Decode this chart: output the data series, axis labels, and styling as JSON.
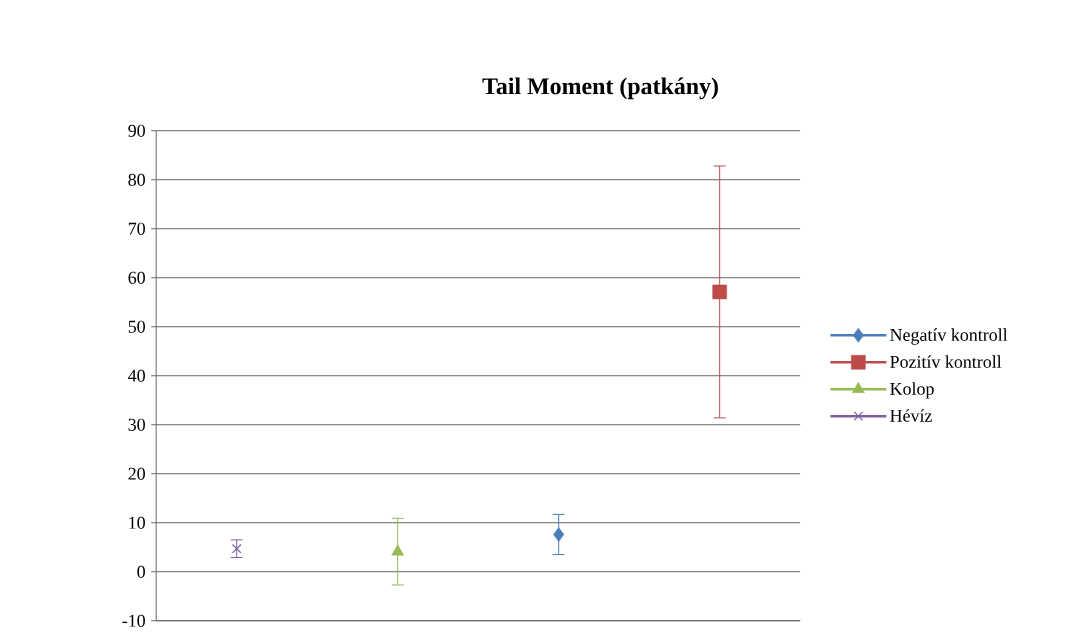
{
  "chart_data": {
    "type": "line",
    "title": "Tail Moment (patkány)",
    "categories": [
      null,
      null,
      null,
      null
    ],
    "ylim": [
      -10,
      90
    ],
    "yticks": [
      -10,
      0,
      10,
      20,
      30,
      40,
      50,
      60,
      70,
      80,
      90
    ],
    "grid": "y",
    "tick_labels": "y",
    "legend": "right",
    "series": [
      {
        "name": "Negatív kontroll",
        "color": "#4a7ebb",
        "marker": "diamond",
        "values": [
          null,
          null,
          7.6,
          null
        ],
        "errors": [
          null,
          null,
          4.1,
          null
        ]
      },
      {
        "name": "Pozitív kontroll",
        "color": "#be4b48",
        "marker": "square",
        "values": [
          null,
          null,
          null,
          57.1
        ],
        "errors": [
          null,
          null,
          null,
          25.7
        ]
      },
      {
        "name": "Kolop",
        "color": "#98b954",
        "marker": "triangle",
        "values": [
          null,
          4.1,
          null,
          null
        ],
        "errors": [
          null,
          6.8,
          null,
          null
        ]
      },
      {
        "name": "Hévíz",
        "color": "#7d60a0",
        "marker": "cross",
        "values": [
          4.7,
          null,
          null,
          null
        ],
        "errors": [
          1.8,
          null,
          null,
          null
        ]
      }
    ]
  }
}
